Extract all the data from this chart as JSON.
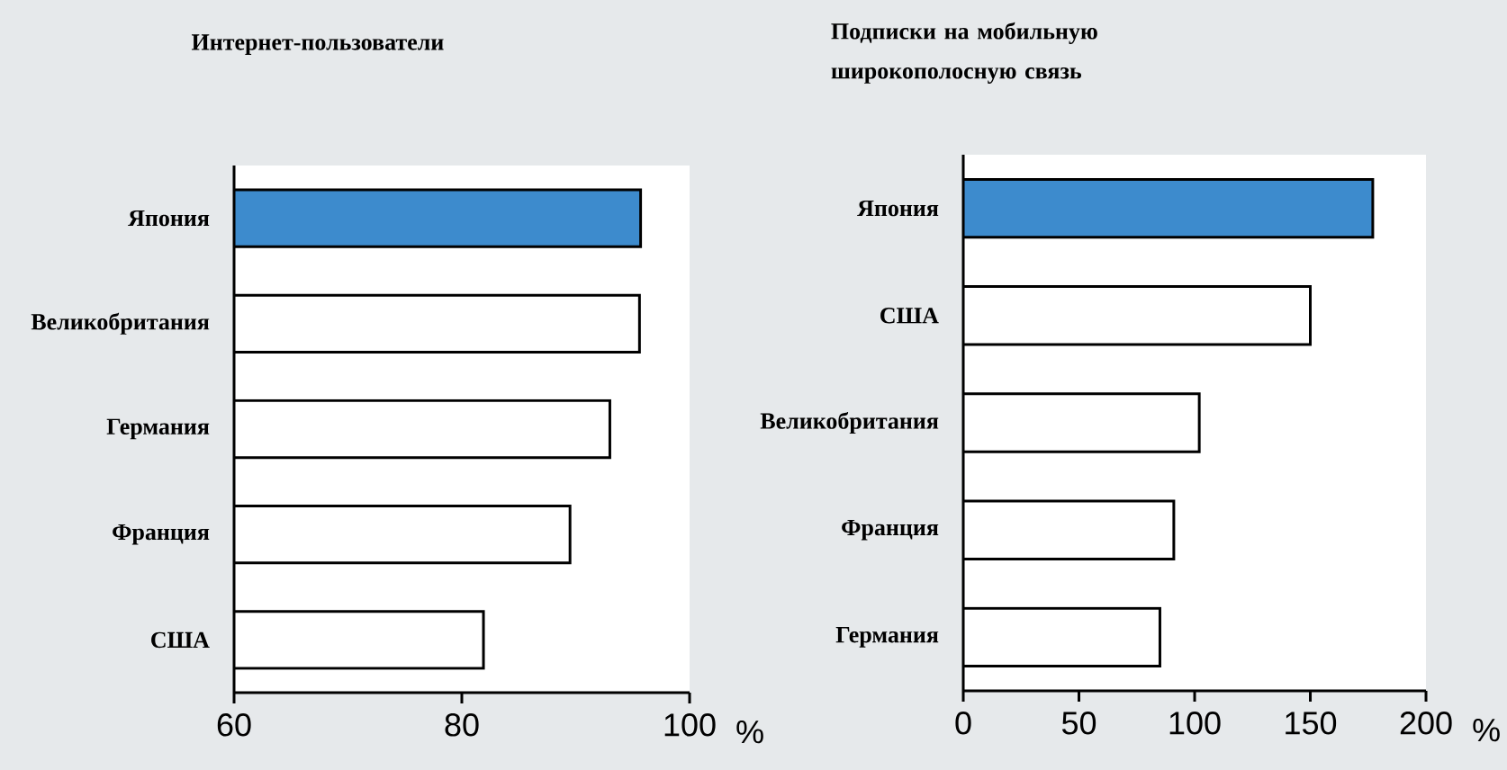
{
  "chart_data": [
    {
      "type": "bar",
      "orientation": "horizontal",
      "title": "Интернет-пользователи",
      "xlabel": "%",
      "categories": [
        "Япония",
        "Великобритания",
        "Германия",
        "Франция",
        "США"
      ],
      "values": [
        95.7,
        95.6,
        93.0,
        89.5,
        81.9
      ],
      "colors": [
        "#3d8bcd",
        "#ffffff",
        "#ffffff",
        "#ffffff",
        "#ffffff"
      ],
      "xlim": [
        60,
        100
      ],
      "xticks": [
        60,
        80,
        100
      ]
    },
    {
      "type": "bar",
      "orientation": "horizontal",
      "title": "Подписки на мобильную широкополосную связь",
      "xlabel": "%",
      "categories": [
        "Япония",
        "США",
        "Великобритания",
        "Франция",
        "Германия"
      ],
      "values": [
        177,
        150,
        102,
        91,
        85
      ],
      "colors": [
        "#3d8bcd",
        "#ffffff",
        "#ffffff",
        "#ffffff",
        "#ffffff"
      ],
      "xlim": [
        0,
        200
      ],
      "xticks": [
        0,
        50,
        100,
        150,
        200
      ]
    }
  ]
}
